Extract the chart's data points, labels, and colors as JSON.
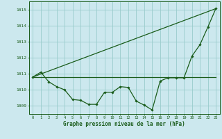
{
  "bg_color": "#cce8ee",
  "grid_color": "#99cccc",
  "line_color": "#1a5c1a",
  "marker_color": "#1a5c1a",
  "xlabel": "Graphe pression niveau de la mer (hPa)",
  "ylim": [
    1008.5,
    1015.5
  ],
  "xlim": [
    -0.5,
    23.5
  ],
  "yticks": [
    1009,
    1010,
    1011,
    1012,
    1013,
    1014,
    1015
  ],
  "xticks": [
    0,
    1,
    2,
    3,
    4,
    5,
    6,
    7,
    8,
    9,
    10,
    11,
    12,
    13,
    14,
    15,
    16,
    17,
    18,
    19,
    20,
    21,
    22,
    23
  ],
  "series1_x": [
    0,
    1,
    2,
    3,
    4,
    5,
    6,
    7,
    8,
    9,
    10,
    11,
    12,
    13,
    14,
    15,
    16,
    17,
    18,
    19,
    20,
    21,
    22,
    23
  ],
  "series1_y": [
    1010.8,
    1011.1,
    1010.5,
    1010.2,
    1010.0,
    1009.4,
    1009.35,
    1009.1,
    1009.1,
    1009.85,
    1009.85,
    1010.2,
    1010.15,
    1009.3,
    1009.05,
    1008.75,
    1010.55,
    1010.75,
    1010.75,
    1010.75,
    1012.1,
    1012.8,
    1013.9,
    1015.05
  ],
  "series2_x": [
    0,
    23
  ],
  "series2_y": [
    1010.8,
    1010.8
  ],
  "series3_x": [
    0,
    23
  ],
  "series3_y": [
    1010.8,
    1015.05
  ]
}
